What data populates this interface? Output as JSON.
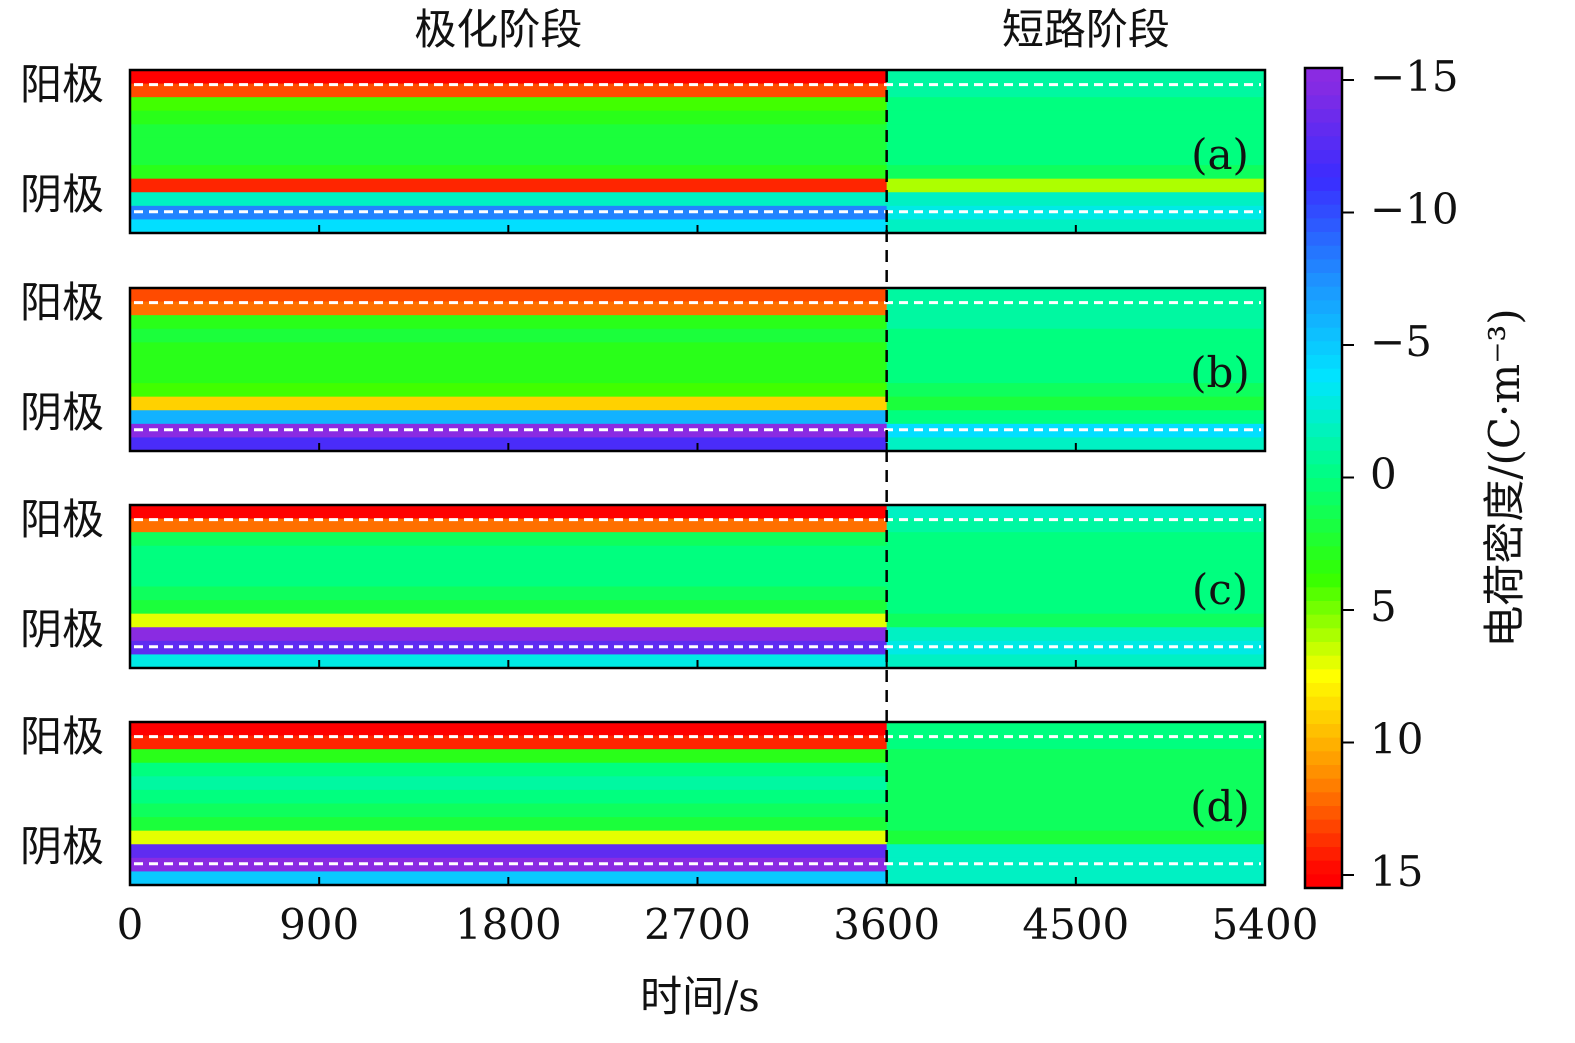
{
  "chart_data": {
    "type": "heatmap",
    "phases": [
      "极化阶段",
      "短路阶段"
    ],
    "phase_boundary": 3600,
    "xlabel": "时间/s",
    "xlim": [
      0,
      5400
    ],
    "xticks": [
      0,
      900,
      1800,
      2700,
      3600,
      4500,
      5400
    ],
    "x_edges": [
      0,
      3600,
      5400
    ],
    "panels": [
      {
        "label": "(a)",
        "y_labels": [
          "阳极",
          "阴极"
        ],
        "values": [
          [
            15,
            13,
            4,
            3,
            2,
            2,
            2,
            3,
            14,
            -2,
            -8,
            -4
          ],
          [
            -1,
            -1,
            0,
            0,
            0,
            0,
            0,
            1,
            6,
            -2,
            -3,
            -2
          ]
        ]
      },
      {
        "label": "(b)",
        "y_labels": [
          "阳极",
          "阴极"
        ],
        "values": [
          [
            13,
            12,
            3,
            2,
            3,
            3,
            3,
            4,
            9,
            -6,
            -15,
            -12
          ],
          [
            -1,
            -1,
            -1,
            0,
            0,
            0,
            0,
            1,
            2,
            0,
            -4,
            -2
          ]
        ]
      },
      {
        "label": "(c)",
        "y_labels": [
          "阳极",
          "阴极"
        ],
        "values": [
          [
            15,
            12,
            1,
            0,
            0,
            0,
            1,
            2,
            7,
            -15,
            -13,
            -3
          ],
          [
            -2,
            -1,
            0,
            0,
            0,
            0,
            0,
            0,
            1,
            -2,
            -3,
            -2
          ]
        ]
      },
      {
        "label": "(d)",
        "y_labels": [
          "阳极",
          "阴极"
        ],
        "values": [
          [
            15,
            14,
            3,
            0,
            -1,
            0,
            1,
            2,
            7,
            -13,
            -15,
            -5
          ],
          [
            0,
            0,
            1,
            1,
            1,
            1,
            1,
            1,
            2,
            -2,
            -2,
            -2
          ]
        ]
      }
    ],
    "colorbar": {
      "label": "电荷密度/(C·m⁻³)",
      "lim": [
        -15,
        15
      ],
      "ticks": [
        {
          "value": -15,
          "label": "−15"
        },
        {
          "value": -10,
          "label": "−10"
        },
        {
          "value": -5,
          "label": "−5"
        },
        0,
        5,
        10,
        15
      ],
      "colors": [
        "#8a2be2",
        "#3a2cff",
        "#1e90ff",
        "#00e5ff",
        "#00ff7f",
        "#33ff00",
        "#ffff00",
        "#ff8c00",
        "#ff0000"
      ]
    }
  }
}
